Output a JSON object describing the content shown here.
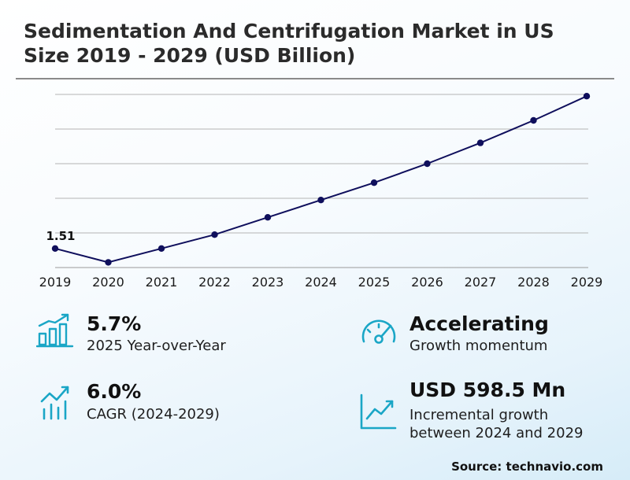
{
  "title_line1": "Sedimentation And Centrifugation Market in US",
  "title_line2": "Size 2019 - 2029 (USD Billion)",
  "chart_data": {
    "type": "line",
    "title": "Sedimentation And Centrifugation Market in US Size 2019 - 2029 (USD Billion)",
    "x": [
      "2019",
      "2020",
      "2021",
      "2022",
      "2023",
      "2024",
      "2025",
      "2026",
      "2027",
      "2028",
      "2029"
    ],
    "series": [
      {
        "values": [
          1.51,
          1.43,
          1.51,
          1.59,
          1.69,
          1.79,
          1.89,
          2.0,
          2.12,
          2.25,
          2.39
        ]
      }
    ],
    "data_labels": [
      {
        "x": "2019",
        "text": "1.51"
      }
    ],
    "ylim": [
      1.4,
      2.4
    ],
    "grid": true,
    "line_color": "#0f0f5c"
  },
  "stats": {
    "yoy": {
      "value": "5.7%",
      "desc": "2025 Year-over-Year",
      "icon": "bar-chart-growth-icon"
    },
    "momentum": {
      "value": "Accelerating",
      "desc": "Growth momentum",
      "icon": "speedometer-icon"
    },
    "cagr": {
      "value": "6.0%",
      "desc": "CAGR (2024-2029)",
      "icon": "trend-bars-icon"
    },
    "incremental": {
      "value": "USD 598.5 Mn",
      "desc1": "Incremental growth",
      "desc2": "between 2024 and 2029",
      "icon": "line-chart-icon"
    }
  },
  "source": "Source: technavio.com",
  "colors": {
    "accent": "#1aa6c6",
    "line": "#0f0f5c"
  }
}
